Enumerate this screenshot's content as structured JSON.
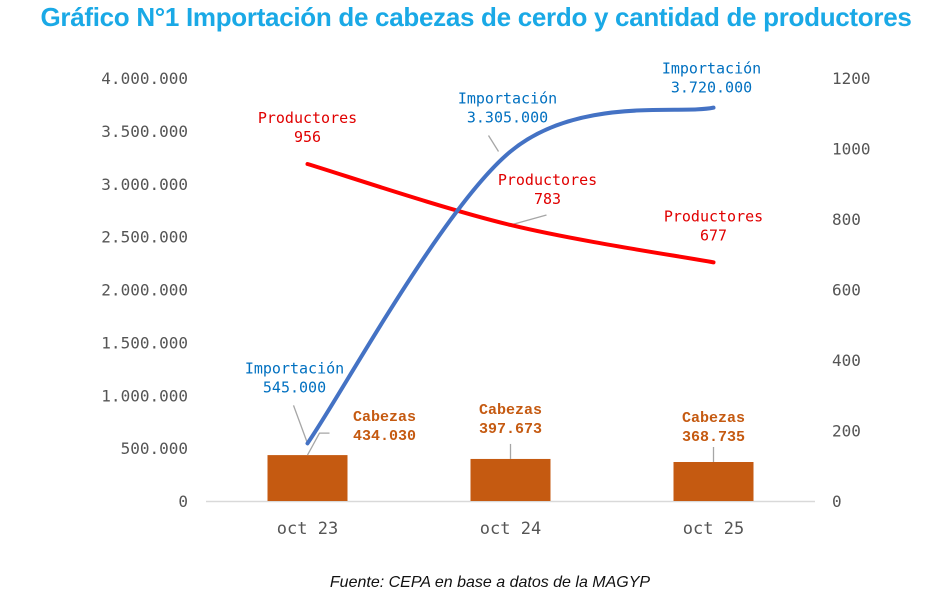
{
  "chart_data": {
    "type": "bar",
    "title": "Gráfico N°1 Importación de cabezas de cerdo y cantidad de productores",
    "source": "Fuente: CEPA en base a datos de la MAGYP",
    "categories": [
      "oct 23",
      "oct 24",
      "oct 25"
    ],
    "y_left": {
      "ylim": [
        0,
        4000000
      ],
      "ticks": [
        0,
        500000,
        1000000,
        1500000,
        2000000,
        2500000,
        3000000,
        3500000,
        4000000
      ],
      "tick_labels": [
        "0",
        "500.000",
        "1.000.000",
        "1.500.000",
        "2.000.000",
        "2.500.000",
        "3.000.000",
        "3.500.000",
        "4.000.000"
      ]
    },
    "y_right": {
      "ylim": [
        0,
        1200
      ],
      "ticks": [
        0,
        200,
        400,
        600,
        800,
        1000,
        1200
      ],
      "tick_labels": [
        "0",
        "200",
        "400",
        "600",
        "800",
        "1000",
        "1200"
      ]
    },
    "grid": false,
    "series": [
      {
        "name": "Cabezas",
        "type": "bar",
        "axis": "left",
        "color": "#c55a11",
        "values": [
          434030,
          397673,
          368735
        ],
        "labels": [
          "434.030",
          "397.673",
          "368.735"
        ]
      },
      {
        "name": "Importación",
        "type": "line",
        "axis": "left",
        "color": "#4472c4",
        "label_color": "#0070c0",
        "values": [
          545000,
          3305000,
          3720000
        ],
        "labels": [
          "545.000",
          "3.305.000",
          "3.720.000"
        ]
      },
      {
        "name": "Productores",
        "type": "line",
        "axis": "right",
        "color": "#ff0000",
        "label_color": "#e00000",
        "values": [
          956,
          783,
          677
        ],
        "labels": [
          "956",
          "783",
          "677"
        ]
      }
    ]
  }
}
